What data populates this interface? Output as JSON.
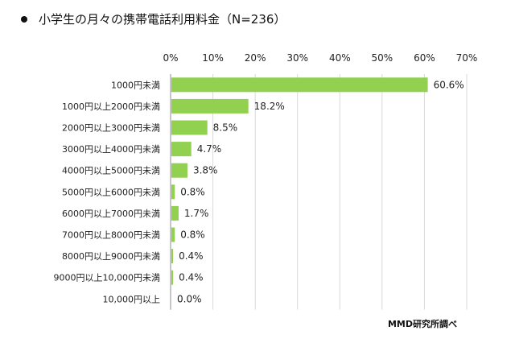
{
  "header": {
    "title": "小学生の月々の携帯電話利用料金（N=236）"
  },
  "source_note": "MMD研究所調べ",
  "chart_data": {
    "type": "bar",
    "orientation": "horizontal",
    "title": "小学生の月々の携帯電話利用料金（N=236）",
    "categories": [
      "1000円未満",
      "1000円以上2000円未満",
      "2000円以上3000円未満",
      "3000円以上4000円未満",
      "4000円以上5000円未満",
      "5000円以上6000円未満",
      "6000円以上7000円未満",
      "7000円以上8000円未満",
      "8000円以上9000円未満",
      "9000円以上10,000円未満",
      "10,000円以上"
    ],
    "values": [
      60.6,
      18.2,
      8.5,
      4.7,
      3.8,
      0.8,
      1.7,
      0.8,
      0.4,
      0.4,
      0.0
    ],
    "value_labels": [
      "60.6%",
      "18.2%",
      "8.5%",
      "4.7%",
      "3.8%",
      "0.8%",
      "1.7%",
      "0.8%",
      "0.4%",
      "0.4%",
      "0.0%"
    ],
    "xlim": [
      0,
      70
    ],
    "x_ticks": [
      0,
      10,
      20,
      30,
      40,
      50,
      60,
      70
    ],
    "x_tick_labels": [
      "0%",
      "10%",
      "20%",
      "30%",
      "40%",
      "50%",
      "60%",
      "70%"
    ],
    "x_axis_position": "top",
    "grid": true,
    "legend": "none",
    "bar_color": "#92d050",
    "grid_color": "#d9d9d9"
  }
}
